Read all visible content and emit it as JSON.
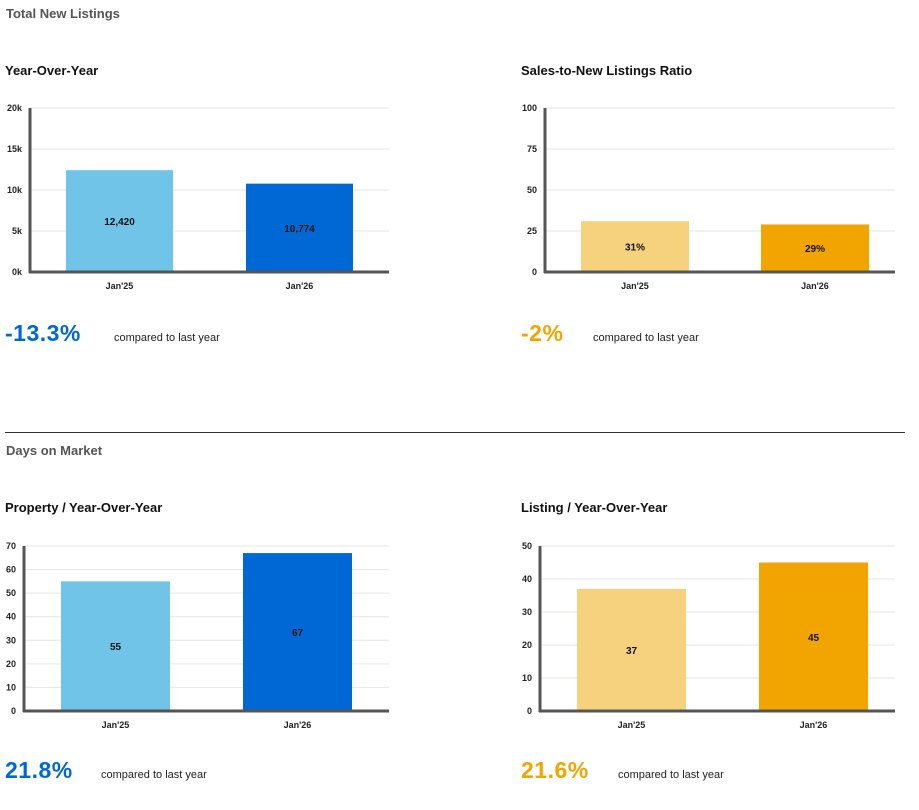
{
  "sections": {
    "listings_title": "Total New Listings",
    "dom_title": "Days on Market"
  },
  "colors": {
    "light_blue": "#70c4e8",
    "dark_blue": "#0068d4",
    "light_orange": "#f6d27f",
    "dark_orange": "#f2a500",
    "blue_text": "#0068d4",
    "orange_text": "#f2a500"
  },
  "summaries": {
    "yoy_listings": {
      "change": "-13.3%",
      "text": "compared to last year"
    },
    "snlr": {
      "change": "-2%",
      "text": "compared to last year"
    },
    "dom_property": {
      "change": "21.8%",
      "text": "compared to last year"
    },
    "dom_listing": {
      "change": "21.6%",
      "text": "compared to last year"
    }
  },
  "chart_data": [
    {
      "id": "yoy_listings",
      "type": "bar",
      "title": "Year-Over-Year",
      "categories": [
        "Jan'25",
        "Jan'26"
      ],
      "values": [
        12420,
        10774
      ],
      "value_labels": [
        "12,420",
        "10,774"
      ],
      "ylim": [
        0,
        20000
      ],
      "yticks": [
        0,
        5000,
        10000,
        15000,
        20000
      ],
      "ytick_labels": [
        "0k",
        "5k",
        "10k",
        "15k",
        "20k"
      ],
      "bar_colors": [
        "#70c4e8",
        "#0068d4"
      ]
    },
    {
      "id": "snlr",
      "type": "bar",
      "title": "Sales-to-New Listings Ratio",
      "categories": [
        "Jan'25",
        "Jan'26"
      ],
      "values": [
        31,
        29
      ],
      "value_labels": [
        "31%",
        "29%"
      ],
      "ylim": [
        0,
        100
      ],
      "yticks": [
        0,
        25,
        50,
        75,
        100
      ],
      "ytick_labels": [
        "0",
        "25",
        "50",
        "75",
        "100"
      ],
      "bar_colors": [
        "#f6d27f",
        "#f2a500"
      ]
    },
    {
      "id": "dom_property",
      "type": "bar",
      "title": "Property / Year-Over-Year",
      "categories": [
        "Jan'25",
        "Jan'26"
      ],
      "values": [
        55,
        67
      ],
      "value_labels": [
        "55",
        "67"
      ],
      "ylim": [
        0,
        70
      ],
      "yticks": [
        0,
        10,
        20,
        30,
        40,
        50,
        60,
        70
      ],
      "ytick_labels": [
        "0",
        "10",
        "20",
        "30",
        "40",
        "50",
        "60",
        "70"
      ],
      "bar_colors": [
        "#70c4e8",
        "#0068d4"
      ]
    },
    {
      "id": "dom_listing",
      "type": "bar",
      "title": "Listing / Year-Over-Year",
      "categories": [
        "Jan'25",
        "Jan'26"
      ],
      "values": [
        37,
        45
      ],
      "value_labels": [
        "37",
        "45"
      ],
      "ylim": [
        0,
        50
      ],
      "yticks": [
        0,
        10,
        20,
        30,
        40,
        50
      ],
      "ytick_labels": [
        "0",
        "10",
        "20",
        "30",
        "40",
        "50"
      ],
      "bar_colors": [
        "#f6d27f",
        "#f2a500"
      ]
    }
  ]
}
